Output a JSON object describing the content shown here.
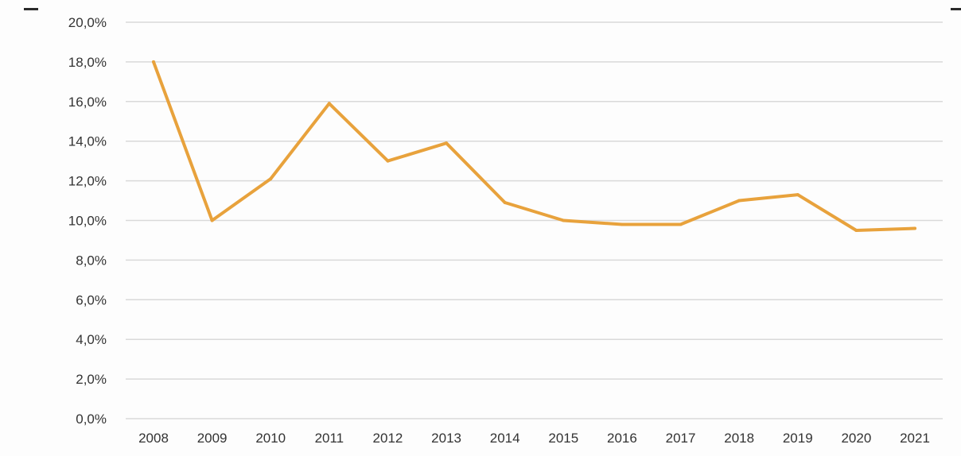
{
  "chart_data": {
    "type": "line",
    "title": "",
    "xlabel": "",
    "ylabel": "",
    "x": [
      "2008",
      "2009",
      "2010",
      "2011",
      "2012",
      "2013",
      "2014",
      "2015",
      "2016",
      "2017",
      "2018",
      "2019",
      "2020",
      "2021"
    ],
    "series": [
      {
        "values": [
          18.0,
          10.0,
          12.1,
          15.9,
          13.0,
          13.9,
          10.9,
          10.0,
          9.8,
          9.8,
          11.0,
          11.3,
          9.5,
          9.6
        ],
        "color": "#e8a23c"
      }
    ],
    "ylim": [
      0,
      20
    ],
    "y_ticks": [
      "0,0%",
      "2,0%",
      "4,0%",
      "6,0%",
      "8,0%",
      "10,0%",
      "12,0%",
      "14,0%",
      "16,0%",
      "18,0%",
      "20,0%"
    ],
    "grid": true,
    "legend": "none",
    "colors": {
      "line": "#e8a23c",
      "grid": "#d9d9d9",
      "text": "#333333"
    }
  }
}
